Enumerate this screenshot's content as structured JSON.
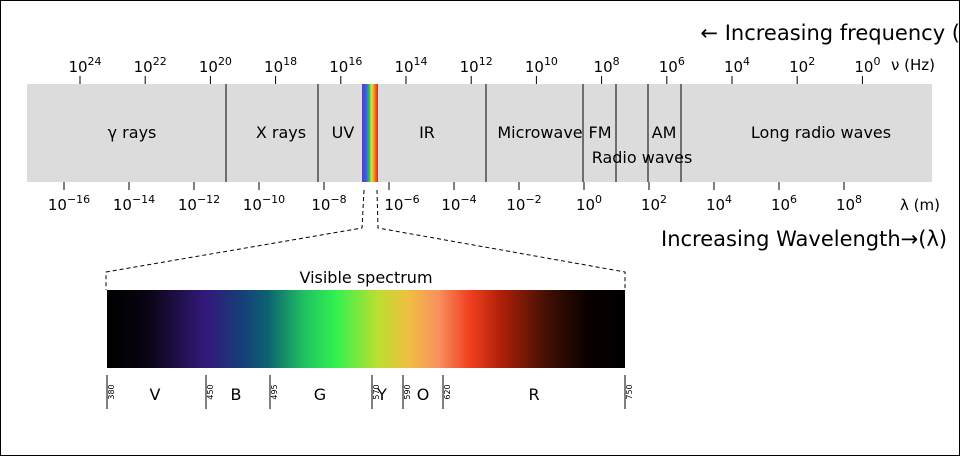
{
  "frequency_label": "← Increasing frequency (",
  "frequency_unit": "ν (Hz)",
  "frequency_ticks": [
    {
      "base": "10",
      "exponent": "24"
    },
    {
      "base": "10",
      "exponent": "22"
    },
    {
      "base": "10",
      "exponent": "20"
    },
    {
      "base": "10",
      "exponent": "18"
    },
    {
      "base": "10",
      "exponent": "16"
    },
    {
      "base": "10",
      "exponent": "14"
    },
    {
      "base": "10",
      "exponent": "12"
    },
    {
      "base": "10",
      "exponent": "10"
    },
    {
      "base": "10",
      "exponent": "8"
    },
    {
      "base": "10",
      "exponent": "6"
    },
    {
      "base": "10",
      "exponent": "4"
    },
    {
      "base": "10",
      "exponent": "2"
    },
    {
      "base": "10",
      "exponent": "0"
    }
  ],
  "wavelength_label": "Increasing Wavelength→(λ)",
  "wavelength_unit": "λ (m)",
  "wavelength_ticks": [
    {
      "base": "10",
      "exponent": "−16"
    },
    {
      "base": "10",
      "exponent": "−14"
    },
    {
      "base": "10",
      "exponent": "−12"
    },
    {
      "base": "10",
      "exponent": "−10"
    },
    {
      "base": "10",
      "exponent": "−8"
    },
    {
      "base": "10",
      "exponent": "−6"
    },
    {
      "base": "10",
      "exponent": "−4"
    },
    {
      "base": "10",
      "exponent": "−2"
    },
    {
      "base": "10",
      "exponent": "0"
    },
    {
      "base": "10",
      "exponent": "2"
    },
    {
      "base": "10",
      "exponent": "4"
    },
    {
      "base": "10",
      "exponent": "6"
    },
    {
      "base": "10",
      "exponent": "8"
    }
  ],
  "bands": [
    "γ rays",
    "X rays",
    "UV",
    "IR",
    "Microwave",
    "FM",
    "AM",
    "Radio waves",
    "Long radio waves"
  ],
  "visible": {
    "title": "Visible spectrum",
    "wavelengths": [
      "380",
      "450",
      "495",
      "570",
      "590",
      "620",
      "750"
    ],
    "colors": [
      "V",
      "B",
      "G",
      "Y",
      "O",
      "R"
    ]
  }
}
